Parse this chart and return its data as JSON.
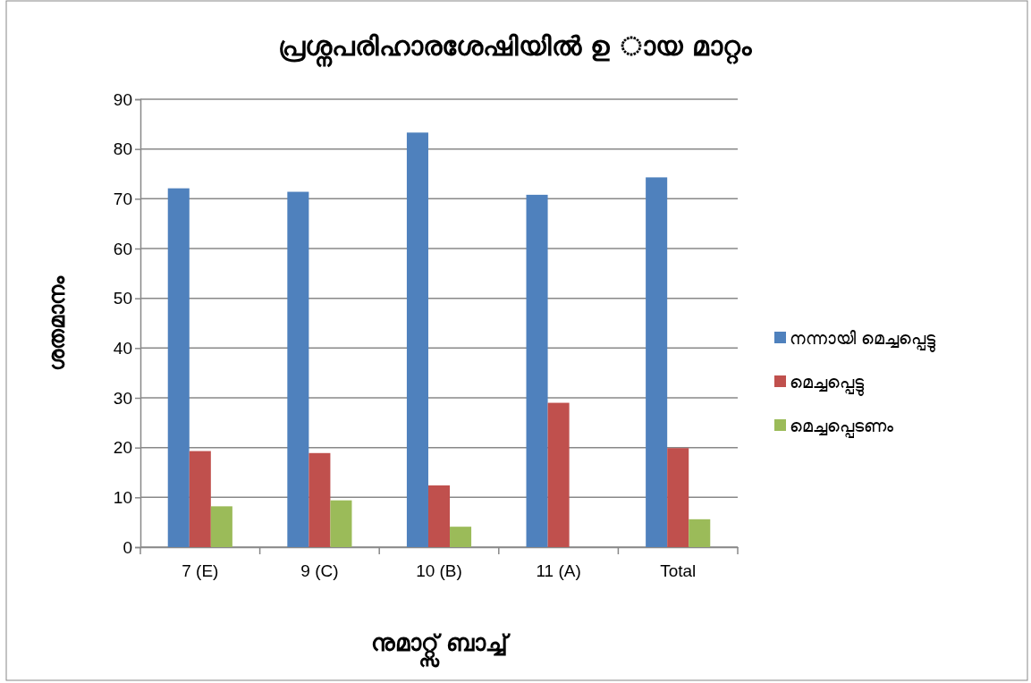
{
  "chart_data": {
    "type": "bar",
    "title": "പ്രശ്നപരിഹാരശേഷിയിൽ ഉ      ായ മാറ്റം",
    "xlabel": "നുമാറ്റ്സ് ബാച്ച്",
    "ylabel": "ശതമാനം",
    "categories": [
      "7 (E)",
      "9 (C)",
      "10 (B)",
      "11 (A)",
      "Total"
    ],
    "series": [
      {
        "name": "നന്നായി മെച്ചപ്പെട്ടു",
        "color": "#4f81bd",
        "values": [
          72.1,
          71.4,
          83.3,
          70.8,
          74.3
        ]
      },
      {
        "name": "മെച്ചപ്പെട്ടു",
        "color": "#c0504d",
        "values": [
          19.3,
          18.9,
          12.4,
          29.0,
          19.9
        ]
      },
      {
        "name": "മെച്ചപ്പെടണം",
        "color": "#9bbb59",
        "values": [
          8.2,
          9.4,
          4.1,
          0,
          5.6
        ]
      }
    ],
    "ylim": [
      0,
      90
    ],
    "yticks": [
      0,
      10,
      20,
      30,
      40,
      50,
      60,
      70,
      80,
      90
    ],
    "grid": "y",
    "legend": "right"
  }
}
